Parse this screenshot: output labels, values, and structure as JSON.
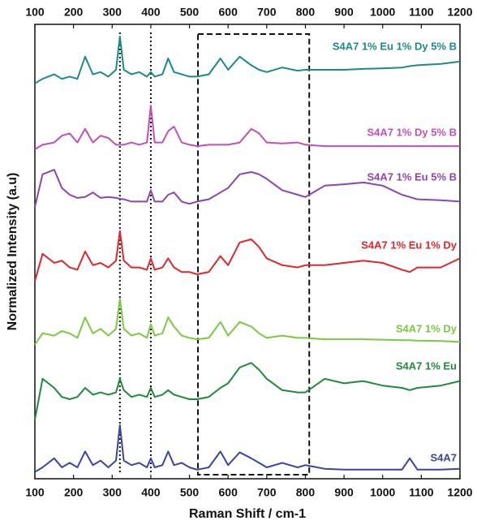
{
  "chart_data": {
    "type": "line",
    "x_label": "Raman Shift / cm-1",
    "y_label": "Normalized Intensity (a.u)",
    "xlim": [
      100,
      1200
    ],
    "xticks": [
      100,
      200,
      300,
      400,
      500,
      600,
      700,
      800,
      900,
      1000,
      1100,
      1200
    ],
    "ylim": [
      0,
      100
    ],
    "vlines": [
      320,
      400
    ],
    "highlight_x": [
      522,
      810
    ],
    "x": [
      100,
      120,
      150,
      170,
      190,
      210,
      230,
      250,
      270,
      290,
      310,
      320,
      330,
      350,
      370,
      390,
      400,
      410,
      430,
      445,
      460,
      480,
      500,
      520,
      550,
      580,
      600,
      630,
      660,
      680,
      700,
      740,
      780,
      800,
      850,
      900,
      950,
      1000,
      1050,
      1070,
      1090,
      1150,
      1200
    ],
    "series": [
      {
        "name": "S4A7",
        "color": "#3a45a0",
        "values": [
          1.5,
          2.5,
          4.5,
          2.5,
          3.5,
          2.5,
          6,
          3,
          4,
          2.5,
          4,
          11.8,
          4,
          3,
          3.5,
          2.5,
          4.5,
          2.5,
          3,
          6,
          3,
          3.5,
          2.5,
          2,
          2.5,
          6,
          3,
          5.8,
          4.5,
          3.5,
          2.5,
          3.5,
          2.5,
          3,
          2.2,
          2,
          2,
          2,
          2,
          4.5,
          2,
          2,
          2.2
        ]
      },
      {
        "name": "S4A7 1% Eu",
        "color": "#1e8a3a",
        "values": [
          13,
          22,
          20,
          18,
          17.5,
          18,
          20,
          18.5,
          19,
          18.5,
          19,
          22,
          19.5,
          18,
          18.5,
          18,
          20,
          18,
          18.5,
          19.5,
          18.5,
          18,
          17.5,
          17.5,
          18,
          20,
          21,
          24.5,
          25.5,
          24,
          22,
          19.5,
          19,
          19,
          22,
          21,
          21.5,
          20.5,
          20,
          19.5,
          20,
          20.5,
          21.5
        ]
      },
      {
        "name": "S4A7 1% Dy",
        "color": "#7ac943",
        "values": [
          29.5,
          32,
          31.5,
          32.5,
          32,
          31,
          35.5,
          32,
          33,
          31.5,
          33,
          39.6,
          33,
          31.5,
          32,
          31,
          34,
          31.5,
          32,
          35.5,
          33.5,
          31.5,
          31,
          30.7,
          31,
          34.5,
          31.5,
          34.5,
          33.5,
          32,
          31,
          31.5,
          31,
          31,
          30.7,
          30.7,
          30.7,
          30.6,
          30.5,
          30.5,
          30.4,
          30.3,
          30.1
        ]
      },
      {
        "name": "S4A7 1% Eu 1% Dy",
        "color": "#e0262b",
        "values": [
          43.5,
          49.5,
          47.5,
          48,
          46.5,
          46,
          50,
          47,
          47.5,
          46.5,
          48,
          54.5,
          48,
          46.5,
          46.5,
          46,
          48.5,
          46,
          46.5,
          48.5,
          46.5,
          45.5,
          45.5,
          45,
          45.5,
          49,
          47,
          52,
          52.7,
          51,
          48.5,
          47,
          46.5,
          47,
          47,
          47.5,
          48,
          47.5,
          46,
          45.5,
          46.5,
          46.5,
          48.5
        ]
      },
      {
        "name": "S4A7 1% Eu 5% B",
        "color": "#8e44ad",
        "values": [
          59.8,
          67,
          68,
          64,
          62.5,
          61.8,
          62,
          63,
          61.8,
          62,
          61.8,
          61.6,
          61.5,
          61,
          61,
          61,
          63.5,
          61,
          61,
          62.5,
          63,
          61,
          60.5,
          61,
          61.5,
          63,
          64,
          67,
          67.5,
          67,
          66,
          63.5,
          62.5,
          62,
          64.5,
          64.8,
          65.2,
          64.5,
          62.5,
          62,
          61.5,
          61.3,
          61
        ]
      },
      {
        "name": "S4A7 1% Dy 5% B",
        "color": "#c04fb8",
        "values": [
          72.5,
          73.5,
          74,
          75.5,
          76,
          74,
          77,
          74,
          75.5,
          75,
          73.5,
          73.5,
          73.5,
          74,
          73.5,
          74,
          82.1,
          74,
          74,
          76.5,
          77.5,
          74,
          73.5,
          73.2,
          73.5,
          73.5,
          73.5,
          74,
          77,
          76,
          74,
          73.8,
          74,
          73.5,
          73.2,
          73.2,
          73.2,
          73.2,
          73.2,
          73.2,
          73.2,
          73.2,
          73.2
        ]
      },
      {
        "name": "S4A7 1% Eu 1% Dy 5% B",
        "color": "#1a8a8a",
        "values": [
          87,
          88,
          89,
          88,
          88.5,
          88,
          92.9,
          89,
          89.5,
          88.5,
          90,
          97.3,
          90,
          89,
          89.5,
          88.5,
          89.5,
          88.5,
          89,
          92.5,
          89.5,
          89,
          88.5,
          88.5,
          89,
          92.5,
          90,
          92.9,
          91,
          90,
          89.5,
          90.5,
          89.8,
          90,
          90,
          90,
          90.2,
          90.3,
          90.5,
          90.8,
          91,
          91.3,
          91.8
        ]
      }
    ]
  }
}
